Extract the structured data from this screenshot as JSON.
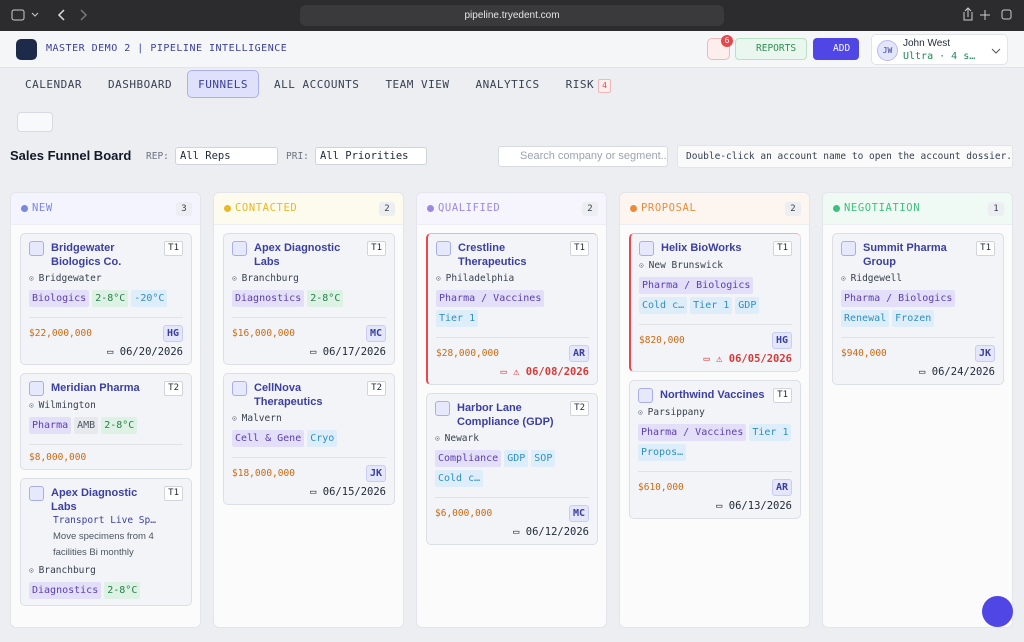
{
  "browser": {
    "url": "pipeline.tryedent.com"
  },
  "app": {
    "title": "MASTER DEMO 2 | PIPELINE INTELLIGENCE",
    "notifications": "6",
    "reports": "REPORTS",
    "add": "ADD",
    "user": {
      "initials": "JW",
      "name": "John West",
      "plan": "Ultra · 4 s…"
    }
  },
  "tabs": [
    {
      "label": "CALENDAR"
    },
    {
      "label": "DASHBOARD"
    },
    {
      "label": "FUNNELS",
      "active": true
    },
    {
      "label": "ALL ACCOUNTS"
    },
    {
      "label": "TEAM VIEW"
    },
    {
      "label": "ANALYTICS"
    },
    {
      "label": "RISK",
      "badge": "4"
    }
  ],
  "board": {
    "title": "Sales Funnel Board",
    "rep_label": "REP:",
    "rep": "All Reps",
    "pri_label": "PRI:",
    "pri": "All Priorities",
    "search_placeholder": "Search company or segment...",
    "hint": "Double-click an account name to open the account dossier."
  },
  "columns": [
    {
      "name": "NEW",
      "count": "3",
      "color": "#7b86e0",
      "tint": "#f3f4fd",
      "cards": [
        {
          "name": "Bridgewater Biologics Co.",
          "tier": "T1",
          "location": "Bridgewater",
          "tags": [
            {
              "text": "Biologics",
              "kind": "purple"
            },
            {
              "text": "2-8°C",
              "kind": "green"
            },
            {
              "text": "-20°C",
              "kind": "blue"
            }
          ],
          "value": "$22,000,000",
          "owner": "HG",
          "date": "06/20/2026"
        },
        {
          "name": "Meridian Pharma",
          "tier": "T2",
          "location": "Wilmington",
          "tags": [
            {
              "text": "Pharma",
              "kind": "purple"
            },
            {
              "text": "AMB",
              "kind": "gray"
            },
            {
              "text": "2-8°C",
              "kind": "green"
            }
          ],
          "value": "$8,000,000"
        },
        {
          "name": "Apex Diagnostic Labs",
          "tier": "T1",
          "notes": [
            "Transport Live Sp…",
            "Move specimens from 4 facilities Bi monthly"
          ],
          "location": "Branchburg",
          "tags": [
            {
              "text": "Diagnostics",
              "kind": "purple"
            },
            {
              "text": "2-8°C",
              "kind": "green"
            }
          ]
        }
      ]
    },
    {
      "name": "CONTACTED",
      "count": "2",
      "color": "#e9b824",
      "tint": "#fdfaee",
      "cards": [
        {
          "name": "Apex Diagnostic Labs",
          "tier": "T1",
          "location": "Branchburg",
          "tags": [
            {
              "text": "Diagnostics",
              "kind": "purple"
            },
            {
              "text": "2-8°C",
              "kind": "green"
            }
          ],
          "value": "$16,000,000",
          "owner": "MC",
          "date": "06/17/2026"
        },
        {
          "name": "CellNova Therapeutics",
          "tier": "T2",
          "location": "Malvern",
          "tags": [
            {
              "text": "Cell & Gene",
              "kind": "purple"
            },
            {
              "text": "Cryo",
              "kind": "blue"
            }
          ],
          "value": "$18,000,000",
          "owner": "JK",
          "date": "06/15/2026"
        }
      ]
    },
    {
      "name": "QUALIFIED",
      "count": "2",
      "color": "#9d8ae0",
      "tint": "#f6f4fd",
      "cards": [
        {
          "name": "Crestline Therapeutics",
          "tier": "T1",
          "location": "Philadelphia",
          "tags": [
            {
              "text": "Pharma / Vaccines",
              "kind": "purple"
            },
            {
              "text": "Tier 1",
              "kind": "blue"
            }
          ],
          "value": "$28,000,000",
          "owner": "AR",
          "date": "06/08/2026",
          "overdue": true
        },
        {
          "name": "Harbor Lane Compliance (GDP)",
          "tier": "T2",
          "location": "Newark",
          "tags": [
            {
              "text": "Compliance",
              "kind": "purple"
            },
            {
              "text": "GDP",
              "kind": "blue"
            },
            {
              "text": "SOP",
              "kind": "blue"
            },
            {
              "text": "Cold c…",
              "kind": "blue"
            }
          ],
          "value": "$6,000,000",
          "owner": "MC",
          "date": "06/12/2026"
        }
      ]
    },
    {
      "name": "PROPOSAL",
      "count": "2",
      "color": "#ec8a3a",
      "tint": "#fdf6f0",
      "cards": [
        {
          "name": "Helix BioWorks",
          "tier": "T1",
          "location": "New Brunswick",
          "tags": [
            {
              "text": "Pharma / Biologics",
              "kind": "purple"
            },
            {
              "text": "Cold c…",
              "kind": "blue"
            },
            {
              "text": "Tier 1",
              "kind": "blue"
            },
            {
              "text": "GDP",
              "kind": "blue"
            }
          ],
          "value": "$820,000",
          "owner": "HG",
          "date": "06/05/2026",
          "overdue": true
        },
        {
          "name": "Northwind Vaccines",
          "tier": "T1",
          "location": "Parsippany",
          "tags": [
            {
              "text": "Pharma / Vaccines",
              "kind": "purple"
            },
            {
              "text": "Tier 1",
              "kind": "blue"
            },
            {
              "text": "Propos…",
              "kind": "blue"
            }
          ],
          "value": "$610,000",
          "owner": "AR",
          "date": "06/13/2026"
        }
      ]
    },
    {
      "name": "NEGOTIATION",
      "count": "1",
      "color": "#3fbf7f",
      "tint": "#f0faf4",
      "cards": [
        {
          "name": "Summit Pharma Group",
          "tier": "T1",
          "location": "Ridgewell",
          "tags": [
            {
              "text": "Pharma / Biologics",
              "kind": "purple"
            },
            {
              "text": "Renewal",
              "kind": "blue"
            },
            {
              "text": "Frozen",
              "kind": "blue"
            }
          ],
          "value": "$940,000",
          "owner": "JK",
          "date": "06/24/2026"
        }
      ]
    }
  ]
}
